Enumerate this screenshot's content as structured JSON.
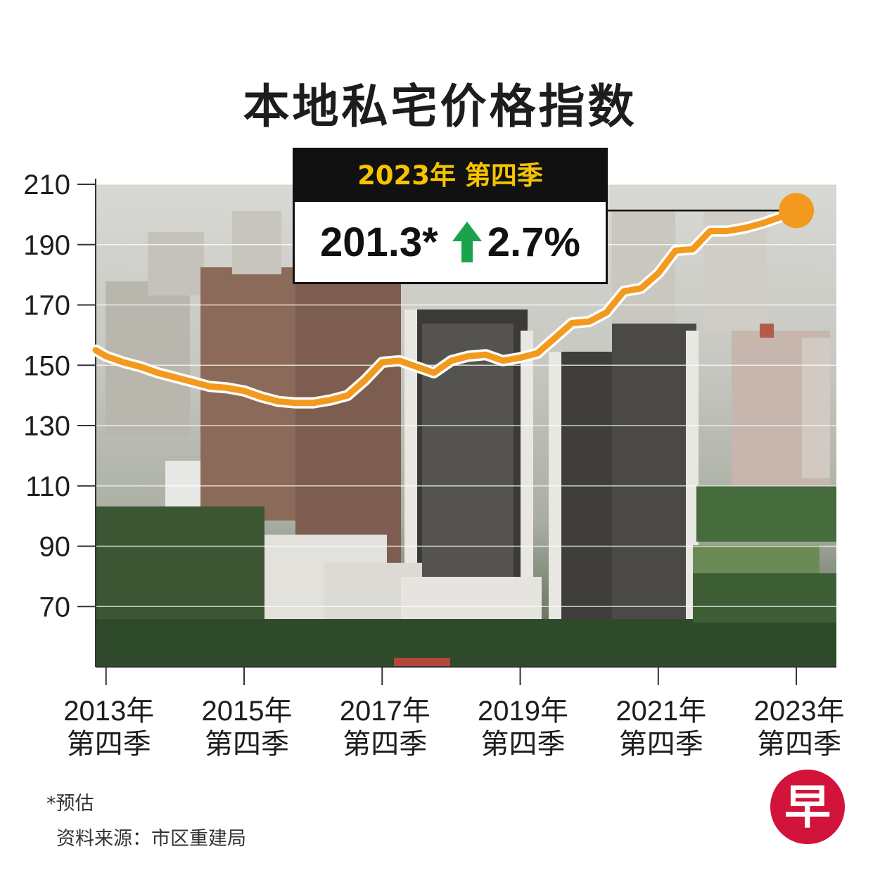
{
  "title": "本地私宅价格指数",
  "callout": {
    "period": "2023年 第四季",
    "value": "201.3*",
    "change": "2.7%",
    "arrow_icon": "up-arrow-icon",
    "arrow_color": "#1aa34a"
  },
  "footnote": "*预估",
  "source": "资料来源：市区重建局",
  "logo_char": "早",
  "colors": {
    "line": "#f39a1e",
    "accent": "#f5c400",
    "logo": "#d2143a"
  },
  "chart_data": {
    "type": "line",
    "title": "本地私宅价格指数",
    "ylim": [
      50,
      210
    ],
    "yticks": [
      210,
      190,
      170,
      150,
      130,
      110,
      90,
      70
    ],
    "grid": true,
    "xticks": [
      {
        "line1": "2013年",
        "line2": "第四季",
        "x": 2013.75
      },
      {
        "line1": "2015年",
        "line2": "第四季",
        "x": 2015.75
      },
      {
        "line1": "2017年",
        "line2": "第四季",
        "x": 2017.75
      },
      {
        "line1": "2019年",
        "line2": "第四季",
        "x": 2019.75
      },
      {
        "line1": "2021年",
        "line2": "第四季",
        "x": 2021.75
      },
      {
        "line1": "2023年",
        "line2": "第四季",
        "x": 2023.75
      }
    ],
    "xlim": [
      2013.6,
      2024.33
    ],
    "series": [
      {
        "x": [
          2013.6,
          2013.75,
          2014.0,
          2014.25,
          2014.5,
          2014.75,
          2015.0,
          2015.25,
          2015.5,
          2015.75,
          2016.0,
          2016.25,
          2016.5,
          2016.75,
          2017.0,
          2017.25,
          2017.5,
          2017.75,
          2018.0,
          2018.25,
          2018.5,
          2018.75,
          2019.0,
          2019.25,
          2019.5,
          2019.75,
          2020.0,
          2020.25,
          2020.5,
          2020.75,
          2021.0,
          2021.25,
          2021.5,
          2021.75,
          2022.0,
          2022.25,
          2022.5,
          2022.75,
          2023.0,
          2023.25,
          2023.5,
          2023.75
        ],
        "y": [
          155.0,
          153.0,
          151.0,
          149.5,
          147.5,
          146.0,
          144.5,
          143.0,
          142.5,
          141.5,
          139.5,
          138.0,
          137.5,
          137.5,
          138.5,
          140.0,
          145.0,
          151.0,
          151.5,
          149.5,
          147.5,
          151.5,
          153.0,
          153.5,
          151.5,
          152.5,
          154.0,
          159.0,
          164.0,
          164.5,
          167.5,
          174.5,
          175.5,
          180.5,
          188.0,
          188.5,
          194.5,
          194.5,
          195.5,
          197.0,
          199.0,
          201.3
        ]
      }
    ],
    "highlight": {
      "x": 2023.75,
      "y": 201.3
    }
  }
}
